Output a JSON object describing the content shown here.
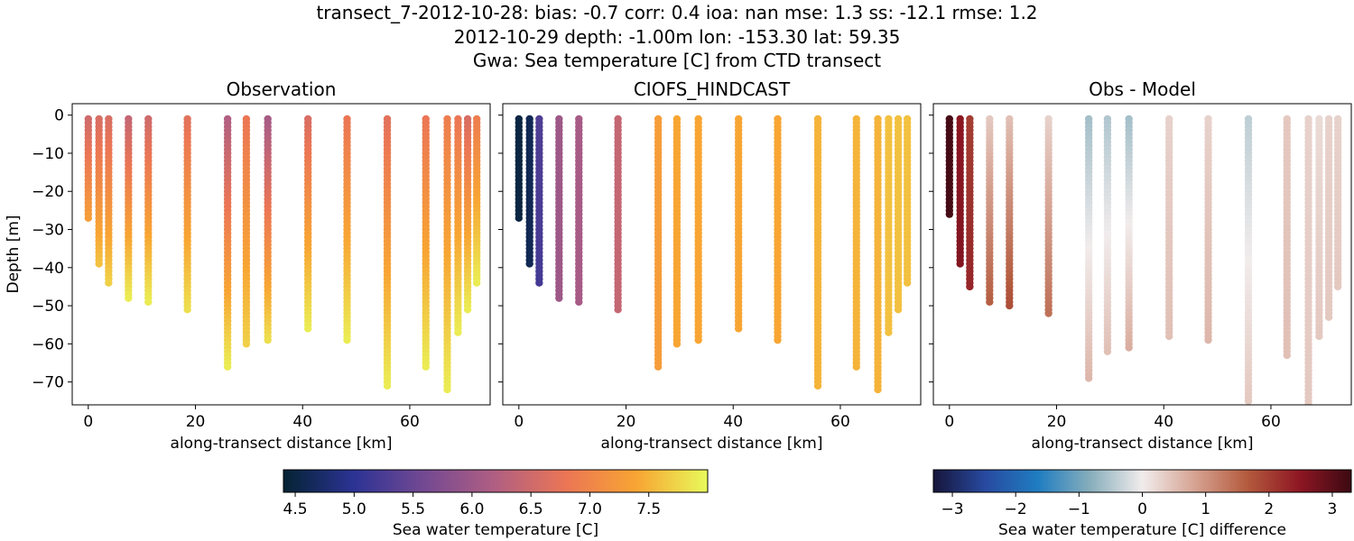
{
  "title_lines": [
    "transect_7-2012-10-28: bias: -0.7  corr: 0.4  ioa: nan  mse: 1.3  ss: -12.1  rmse: 1.2",
    "2012-10-29 depth: -1.00m lon: -153.30 lat: 59.35",
    "Gwa: Sea temperature [C] from CTD transect"
  ],
  "chart_data": [
    {
      "type": "scatter",
      "title": "Observation",
      "xlabel": "along-transect distance [km]",
      "ylabel": "Depth [m]",
      "xlim": [
        -3,
        75
      ],
      "ylim": [
        -76,
        3
      ],
      "xticks": [
        0,
        20,
        40,
        60
      ],
      "yticks": [
        0,
        -10,
        -20,
        -30,
        -40,
        -50,
        -60,
        -70
      ],
      "grid": false,
      "colorbar": "temp",
      "stations": [
        {
          "x": 0,
          "bottom": -27,
          "t_surface": 6.5,
          "t_bottom": 7.3
        },
        {
          "x": 2,
          "bottom": -39,
          "t_surface": 6.6,
          "t_bottom": 7.6
        },
        {
          "x": 3.8,
          "bottom": -44,
          "t_surface": 6.6,
          "t_bottom": 7.7
        },
        {
          "x": 7.5,
          "bottom": -48,
          "t_surface": 6.4,
          "t_bottom": 7.9
        },
        {
          "x": 11.2,
          "bottom": -49,
          "t_surface": 6.5,
          "t_bottom": 7.9
        },
        {
          "x": 18.5,
          "bottom": -51,
          "t_surface": 6.7,
          "t_bottom": 7.8
        },
        {
          "x": 26,
          "bottom": -66,
          "t_surface": 6.2,
          "t_bottom": 7.9
        },
        {
          "x": 29.5,
          "bottom": -60,
          "t_surface": 6.8,
          "t_bottom": 7.7
        },
        {
          "x": 33.5,
          "bottom": -59,
          "t_surface": 6.1,
          "t_bottom": 7.8
        },
        {
          "x": 41,
          "bottom": -56,
          "t_surface": 6.6,
          "t_bottom": 7.9
        },
        {
          "x": 48.3,
          "bottom": -59,
          "t_surface": 6.8,
          "t_bottom": 7.9
        },
        {
          "x": 55.8,
          "bottom": -71,
          "t_surface": 6.7,
          "t_bottom": 7.9
        },
        {
          "x": 63,
          "bottom": -66,
          "t_surface": 6.8,
          "t_bottom": 7.9
        },
        {
          "x": 67,
          "bottom": -72,
          "t_surface": 6.9,
          "t_bottom": 7.9
        },
        {
          "x": 69,
          "bottom": -57,
          "t_surface": 6.8,
          "t_bottom": 7.9
        },
        {
          "x": 70.8,
          "bottom": -51,
          "t_surface": 6.6,
          "t_bottom": 7.9
        },
        {
          "x": 72.5,
          "bottom": -44,
          "t_surface": 6.9,
          "t_bottom": 7.9
        }
      ]
    },
    {
      "type": "scatter",
      "title": "CIOFS_HINDCAST",
      "xlabel": "along-transect distance [km]",
      "ylabel": "",
      "xlim": [
        -3,
        75
      ],
      "ylim": [
        -76,
        3
      ],
      "xticks": [
        0,
        20,
        40,
        60
      ],
      "yticks": [
        0,
        -10,
        -20,
        -30,
        -40,
        -50,
        -60,
        -70
      ],
      "grid": false,
      "colorbar": "temp",
      "stations": [
        {
          "x": 0,
          "bottom": -27,
          "t_surface": 4.5,
          "t_bottom": 4.5
        },
        {
          "x": 2,
          "bottom": -39,
          "t_surface": 4.6,
          "t_bottom": 4.6
        },
        {
          "x": 3.8,
          "bottom": -44,
          "t_surface": 5.3,
          "t_bottom": 5.2
        },
        {
          "x": 7.5,
          "bottom": -48,
          "t_surface": 6.0,
          "t_bottom": 6.0
        },
        {
          "x": 11.2,
          "bottom": -49,
          "t_surface": 6.1,
          "t_bottom": 6.1
        },
        {
          "x": 18.5,
          "bottom": -51,
          "t_surface": 6.4,
          "t_bottom": 6.4
        },
        {
          "x": 26,
          "bottom": -66,
          "t_surface": 7.3,
          "t_bottom": 7.3
        },
        {
          "x": 29.5,
          "bottom": -60,
          "t_surface": 7.4,
          "t_bottom": 7.4
        },
        {
          "x": 33.5,
          "bottom": -59,
          "t_surface": 7.4,
          "t_bottom": 7.4
        },
        {
          "x": 41,
          "bottom": -56,
          "t_surface": 7.4,
          "t_bottom": 7.4
        },
        {
          "x": 48.3,
          "bottom": -59,
          "t_surface": 7.4,
          "t_bottom": 7.4
        },
        {
          "x": 55.8,
          "bottom": -71,
          "t_surface": 7.5,
          "t_bottom": 7.5
        },
        {
          "x": 63,
          "bottom": -66,
          "t_surface": 7.5,
          "t_bottom": 7.5
        },
        {
          "x": 67,
          "bottom": -72,
          "t_surface": 7.5,
          "t_bottom": 7.5
        },
        {
          "x": 69,
          "bottom": -57,
          "t_surface": 7.6,
          "t_bottom": 7.6
        },
        {
          "x": 70.8,
          "bottom": -51,
          "t_surface": 7.6,
          "t_bottom": 7.6
        },
        {
          "x": 72.5,
          "bottom": -44,
          "t_surface": 7.6,
          "t_bottom": 7.6
        }
      ]
    },
    {
      "type": "scatter",
      "title": "Obs - Model",
      "xlabel": "along-transect distance [km]",
      "ylabel": "",
      "xlim": [
        -3,
        75
      ],
      "ylim": [
        -76,
        3
      ],
      "xticks": [
        0,
        20,
        40,
        60
      ],
      "yticks": [
        0,
        -10,
        -20,
        -30,
        -40,
        -50,
        -60,
        -70
      ],
      "ytick_labels": false,
      "grid": false,
      "colorbar": "diff",
      "stations": [
        {
          "x": 0,
          "bottom": -26,
          "t_surface": 3.2,
          "t_bottom": 3.2
        },
        {
          "x": 2,
          "bottom": -39,
          "t_surface": 2.5,
          "t_bottom": 2.6
        },
        {
          "x": 3.8,
          "bottom": -45,
          "t_surface": 2.0,
          "t_bottom": 2.3
        },
        {
          "x": 7.5,
          "bottom": -49,
          "t_surface": 0.4,
          "t_bottom": 1.6
        },
        {
          "x": 11.2,
          "bottom": -50,
          "t_surface": 0.5,
          "t_bottom": 1.8
        },
        {
          "x": 18.5,
          "bottom": -52,
          "t_surface": 0.3,
          "t_bottom": 1.4
        },
        {
          "x": 26,
          "bottom": -69,
          "t_surface": -0.6,
          "t_bottom": 0.6
        },
        {
          "x": 29.5,
          "bottom": -62,
          "t_surface": -0.5,
          "t_bottom": 0.5
        },
        {
          "x": 33.5,
          "bottom": -61,
          "t_surface": -0.6,
          "t_bottom": 0.7
        },
        {
          "x": 41,
          "bottom": -58,
          "t_surface": 0.3,
          "t_bottom": 0.5
        },
        {
          "x": 48.3,
          "bottom": -59,
          "t_surface": 0.3,
          "t_bottom": 0.6
        },
        {
          "x": 55.8,
          "bottom": -75,
          "t_surface": -0.4,
          "t_bottom": 0.4
        },
        {
          "x": 63,
          "bottom": -63,
          "t_surface": 0.4,
          "t_bottom": 0.5
        },
        {
          "x": 67,
          "bottom": -76,
          "t_surface": 0.3,
          "t_bottom": 0.4
        },
        {
          "x": 69,
          "bottom": -58,
          "t_surface": 0.2,
          "t_bottom": 0.4
        },
        {
          "x": 70.8,
          "bottom": -53,
          "t_surface": 0.3,
          "t_bottom": 0.4
        },
        {
          "x": 72.5,
          "bottom": -45,
          "t_surface": 0.3,
          "t_bottom": 0.4
        }
      ]
    }
  ],
  "colorbars": {
    "temp": {
      "label": "Sea water temperature [C]",
      "min": 4.4,
      "max": 8.0,
      "ticks": [
        4.5,
        5.0,
        5.5,
        6.0,
        6.5,
        7.0,
        7.5
      ],
      "tick_labels": [
        "4.5",
        "5.0",
        "5.5",
        "6.0",
        "6.5",
        "7.0",
        "7.5"
      ],
      "colormap": [
        "#042333",
        "#2c3395",
        "#744992",
        "#b15f82",
        "#eb7655",
        "#f8a533",
        "#e8fa5b"
      ]
    },
    "diff": {
      "label": "Sea water temperature [C] difference",
      "min": -3.3,
      "max": 3.3,
      "ticks": [
        -3,
        -2,
        -1,
        0,
        1,
        2,
        3
      ],
      "tick_labels": [
        "−3",
        "−2",
        "−1",
        "0",
        "1",
        "2",
        "3"
      ],
      "colormap": [
        "#16153a",
        "#284aa1",
        "#1f7dc1",
        "#87aebc",
        "#f1ecec",
        "#d6a392",
        "#b45b3e",
        "#8e1723",
        "#3c0912"
      ]
    }
  }
}
